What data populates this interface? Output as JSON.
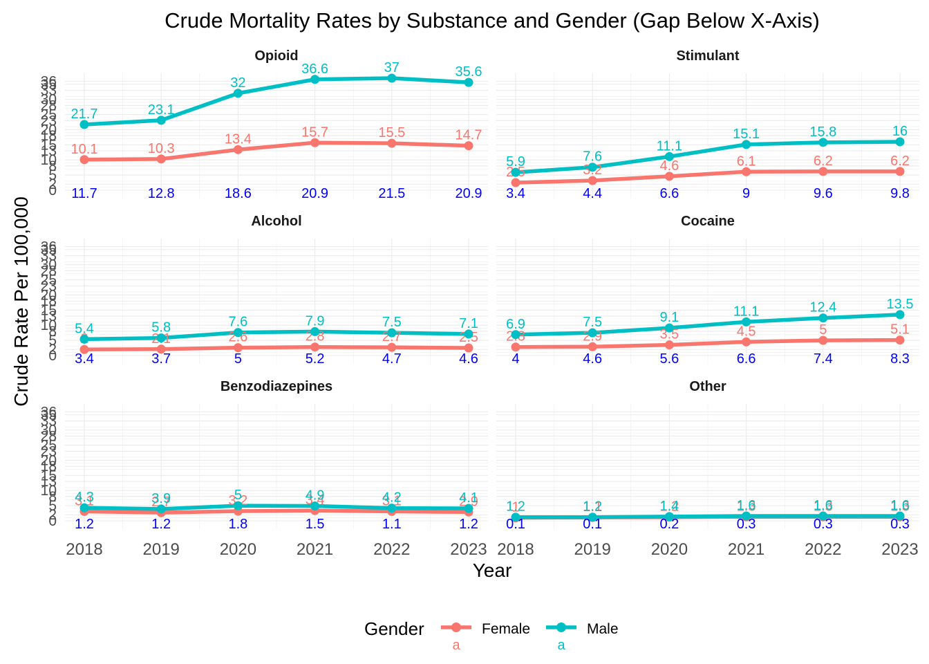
{
  "chart_data": {
    "type": "line",
    "title": "Crude Mortality Rates by Substance and Gender (Gap Below X-Axis)",
    "xlabel": "Year",
    "ylabel": "Crude Rate Per 100,000",
    "x": [
      2018,
      2019,
      2020,
      2021,
      2022,
      2023
    ],
    "ylim": [
      0,
      37
    ],
    "y_ticks": [
      0,
      2,
      5,
      8,
      10,
      13,
      15,
      18,
      20,
      23,
      25,
      28,
      30,
      33,
      35,
      36
    ],
    "grid": true,
    "legend": {
      "title": "Gender",
      "placement": "bottom",
      "key_glyph_text": "a",
      "entries": [
        {
          "name": "Female",
          "color": "#F8766D"
        },
        {
          "name": "Male",
          "color": "#00BFC4"
        }
      ]
    },
    "panels": [
      {
        "name": "Opioid",
        "series": [
          {
            "name": "Female",
            "values": [
              10.1,
              10.3,
              13.4,
              15.7,
              15.5,
              14.7
            ]
          },
          {
            "name": "Male",
            "values": [
              21.7,
              23.1,
              32,
              36.6,
              37,
              35.6
            ]
          }
        ],
        "gap_labels": [
          11.7,
          12.8,
          18.6,
          20.9,
          21.5,
          20.9
        ]
      },
      {
        "name": "Stimulant",
        "series": [
          {
            "name": "Female",
            "values": [
              2.5,
              3.2,
              4.6,
              6.1,
              6.2,
              6.2
            ]
          },
          {
            "name": "Male",
            "values": [
              5.9,
              7.6,
              11.1,
              15.1,
              15.8,
              16
            ]
          }
        ],
        "gap_labels": [
          3.4,
          4.4,
          6.6,
          9,
          9.6,
          9.8
        ]
      },
      {
        "name": "Alcohol",
        "series": [
          {
            "name": "Female",
            "values": [
              2,
              2.1,
              2.6,
              2.8,
              2.7,
              2.5
            ]
          },
          {
            "name": "Male",
            "values": [
              5.4,
              5.8,
              7.6,
              7.9,
              7.5,
              7.1
            ]
          }
        ],
        "gap_labels": [
          3.4,
          3.7,
          5,
          5.2,
          4.7,
          4.6
        ]
      },
      {
        "name": "Cocaine",
        "series": [
          {
            "name": "Female",
            "values": [
              2.8,
              2.9,
              3.5,
              4.5,
              5,
              5.1
            ]
          },
          {
            "name": "Male",
            "values": [
              6.9,
              7.5,
              9.1,
              11.1,
              12.4,
              13.5
            ]
          }
        ],
        "gap_labels": [
          4,
          4.6,
          5.6,
          6.6,
          7.4,
          8.3
        ]
      },
      {
        "name": "Benzodiazepines",
        "series": [
          {
            "name": "Female",
            "values": [
              3.1,
              2.7,
              3.2,
              3.4,
              3.1,
              2.9
            ]
          },
          {
            "name": "Male",
            "values": [
              4.3,
              3.9,
              5,
              4.9,
              4.2,
              4.1
            ]
          }
        ],
        "gap_labels": [
          1.2,
          1.2,
          1.8,
          1.5,
          1.1,
          1.2
        ]
      },
      {
        "name": "Other",
        "series": [
          {
            "name": "Female",
            "values": [
              1,
              1.1,
              1.2,
              1.3,
              1.3,
              1.3
            ]
          },
          {
            "name": "Male",
            "values": [
              1.2,
              1.2,
              1.4,
              1.6,
              1.6,
              1.6
            ]
          }
        ],
        "gap_labels": [
          0.1,
          0.1,
          0.2,
          0.3,
          0.3,
          0.3
        ]
      }
    ]
  }
}
